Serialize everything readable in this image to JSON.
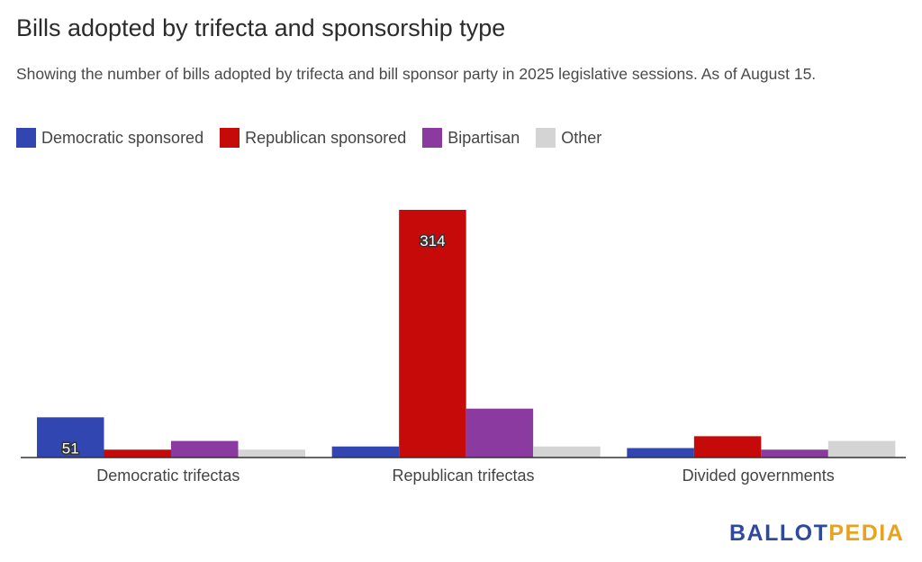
{
  "header": {
    "title": "Bills adopted by trifecta and sponsorship type",
    "subtitle": "Showing the number of bills adopted by trifecta and bill sponsor party in 2025 legislative sessions. As of August 15."
  },
  "legend": [
    {
      "label": "Democratic sponsored",
      "color": "#3146b0"
    },
    {
      "label": "Republican sponsored",
      "color": "#c60a0a"
    },
    {
      "label": "Bipartisan",
      "color": "#8b3aa0"
    },
    {
      "label": "Other",
      "color": "#d4d4d4"
    }
  ],
  "chart_data": {
    "type": "bar",
    "categories": [
      "Democratic trifectas",
      "Republican trifectas",
      "Divided governments"
    ],
    "series": [
      {
        "name": "Democratic sponsored",
        "color": "#3146b0",
        "values": [
          51,
          14,
          12
        ],
        "labels": [
          "51",
          "",
          ""
        ]
      },
      {
        "name": "Republican sponsored",
        "color": "#c60a0a",
        "values": [
          10,
          314,
          27
        ],
        "labels": [
          "",
          "314",
          ""
        ]
      },
      {
        "name": "Bipartisan",
        "color": "#8b3aa0",
        "values": [
          21,
          62,
          10
        ],
        "labels": [
          "",
          "",
          ""
        ]
      },
      {
        "name": "Other",
        "color": "#d4d4d4",
        "values": [
          10,
          14,
          21
        ],
        "labels": [
          "",
          "",
          ""
        ]
      }
    ],
    "ylim": [
      0,
      314
    ]
  },
  "branding": {
    "logo_part1": "BALLOT",
    "logo_part2": "PEDIA"
  }
}
